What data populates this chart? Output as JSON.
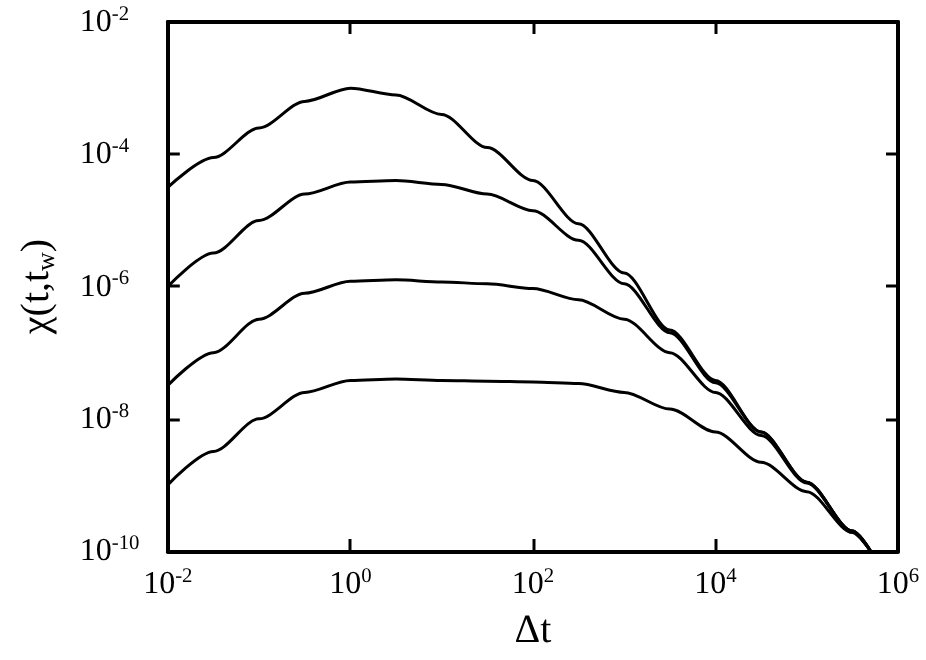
{
  "chart_data": {
    "type": "line",
    "xlabel": "Δt",
    "ylabel": "χ(t,t$_{w}$)",
    "log": "xy",
    "grid": false,
    "marker": "none",
    "line_style": "solid",
    "xlim": [
      0.01,
      1000000
    ],
    "ylim": [
      1e-10,
      0.01
    ],
    "xticks": [
      {
        "value": 0.01,
        "label": "10$^{-2}$"
      },
      {
        "value": 1,
        "label": "10$^{0}$"
      },
      {
        "value": 100,
        "label": "10$^{2}$"
      },
      {
        "value": 10000,
        "label": "10$^{4}$"
      },
      {
        "value": 1000000,
        "label": "10$^{6}$"
      }
    ],
    "yticks": [
      {
        "value": 1e-10,
        "label": "10$^{-10}$"
      },
      {
        "value": 1e-08,
        "label": "10$^{-8}$"
      },
      {
        "value": 1e-06,
        "label": "10$^{-6}$"
      },
      {
        "value": 0.0001,
        "label": "10$^{-4}$"
      },
      {
        "value": 0.01,
        "label": "10$^{-2}$"
      }
    ],
    "x": [
      0.01,
      0.0316,
      0.1,
      0.316,
      1,
      3.16,
      10,
      31.6,
      100,
      316,
      1000,
      3160,
      10000,
      31600,
      100000,
      316000,
      500000
    ],
    "series": [
      {
        "color": "#000000",
        "values": [
          3.16e-05,
          8.9e-05,
          0.00025,
          0.00063,
          0.001,
          0.00079,
          0.0004,
          0.000126,
          4e-05,
          8.9e-06,
          1.6e-06,
          2.2e-07,
          3.8e-08,
          6.3e-09,
          1.1e-09,
          2e-10,
          1e-10
        ]
      },
      {
        "color": "#000000",
        "values": [
          1e-06,
          3.2e-06,
          1e-05,
          2.5e-05,
          3.8e-05,
          4e-05,
          3.5e-05,
          2.5e-05,
          1.4e-05,
          5e-06,
          1.1e-06,
          2e-07,
          3.5e-08,
          6.3e-09,
          1.1e-09,
          2e-10,
          1e-10
        ]
      },
      {
        "color": "#000000",
        "values": [
          3.2e-08,
          1e-07,
          3.2e-07,
          7.9e-07,
          1.2e-06,
          1.26e-06,
          1.17e-06,
          1.1e-06,
          9.3e-07,
          6.3e-07,
          3.2e-07,
          1e-07,
          2.5e-08,
          5.6e-09,
          1.07e-09,
          2e-10,
          1e-10
        ]
      },
      {
        "color": "#000000",
        "values": [
          1e-09,
          3.2e-09,
          1e-08,
          2.5e-08,
          3.8e-08,
          4e-08,
          3.8e-08,
          3.7e-08,
          3.6e-08,
          3.4e-08,
          2.5e-08,
          1.4e-08,
          6.3e-09,
          2.2e-09,
          7.9e-10,
          1.9e-10,
          1e-10
        ]
      }
    ]
  }
}
